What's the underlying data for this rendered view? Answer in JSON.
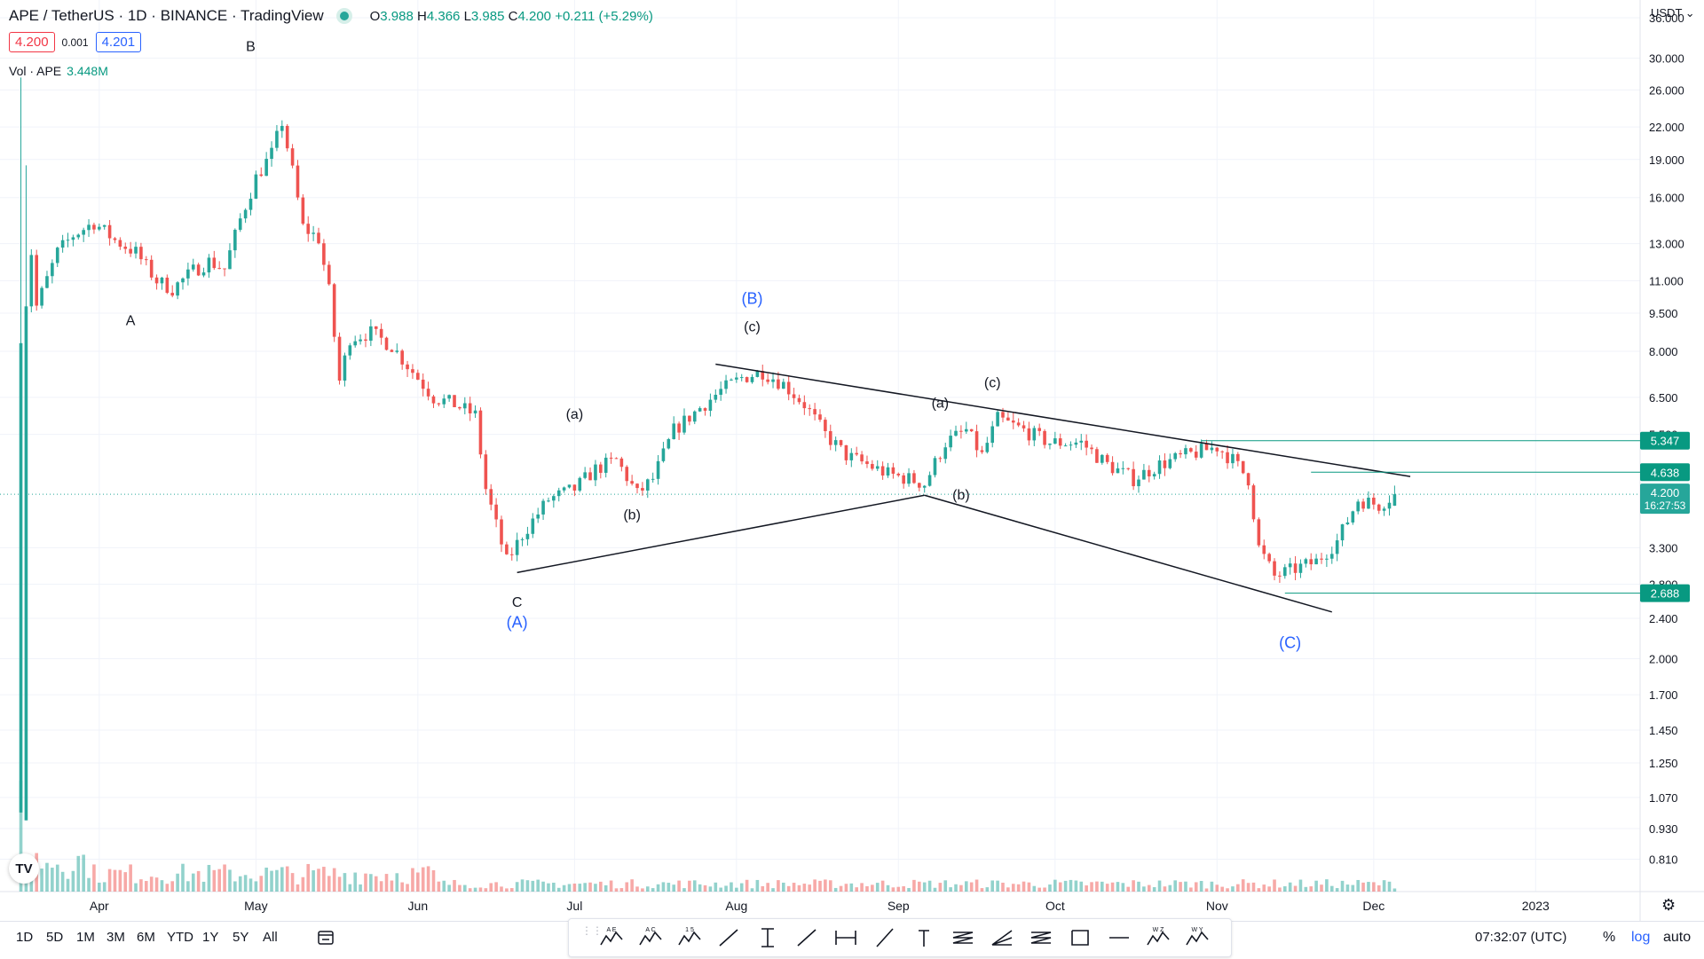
{
  "header": {
    "symbol": "APE / TetherUS · 1D · BINANCE · TradingView",
    "o_label": "O",
    "o": "3.988",
    "h_label": "H",
    "h": "4.366",
    "l_label": "L",
    "l": "3.985",
    "c_label": "C",
    "c": "4.200",
    "change": "+0.211 (+5.29%)",
    "bid": "4.200",
    "spread": "0.001",
    "ask": "4.201",
    "vol_label": "Vol · APE",
    "vol_value": "3.448M"
  },
  "currency": "USDT",
  "colors": {
    "up": "#26a69a",
    "down": "#ef5350",
    "blue_label": "#2962ff",
    "accent": "#089981"
  },
  "chart_data": {
    "type": "candlestick",
    "scale": "log",
    "ylim": [
      0.7,
      39
    ],
    "x_range": [
      "2022-03-13",
      "2023-01-21"
    ],
    "y_ticks": [
      "36.000",
      "30.000",
      "26.000",
      "22.000",
      "19.000",
      "16.000",
      "13.000",
      "11.000",
      "9.500",
      "8.000",
      "6.500",
      "5.500",
      "3.300",
      "2.800",
      "2.400",
      "2.000",
      "1.700",
      "1.450",
      "1.250",
      "1.070",
      "0.930",
      "0.810"
    ],
    "x_tick_labels": [
      {
        "date": "2022-04-01",
        "label": "Apr"
      },
      {
        "date": "2022-05-01",
        "label": "May"
      },
      {
        "date": "2022-06-01",
        "label": "Jun"
      },
      {
        "date": "2022-07-01",
        "label": "Jul"
      },
      {
        "date": "2022-08-01",
        "label": "Aug"
      },
      {
        "date": "2022-09-01",
        "label": "Sep"
      },
      {
        "date": "2022-10-01",
        "label": "Oct"
      },
      {
        "date": "2022-11-01",
        "label": "Nov"
      },
      {
        "date": "2022-12-01",
        "label": "Dec"
      },
      {
        "date": "2023-01-01",
        "label": "2023"
      }
    ],
    "start_date": "2022-03-17",
    "price_path": [
      [
        "2022-03-17",
        1.0
      ],
      [
        "2022-03-18",
        10.0
      ],
      [
        "2022-03-19",
        12.5
      ],
      [
        "2022-03-20",
        9.8
      ],
      [
        "2022-03-24",
        12.5
      ],
      [
        "2022-03-27",
        13.5
      ],
      [
        "2022-03-31",
        14.3
      ],
      [
        "2022-04-04",
        13.2
      ],
      [
        "2022-04-08",
        12.5
      ],
      [
        "2022-04-12",
        11.0
      ],
      [
        "2022-04-15",
        10.6
      ],
      [
        "2022-04-19",
        11.5
      ],
      [
        "2022-04-22",
        12.0
      ],
      [
        "2022-04-25",
        11.6
      ],
      [
        "2022-04-28",
        14.5
      ],
      [
        "2022-05-01",
        17.5
      ],
      [
        "2022-05-04",
        19.5
      ],
      [
        "2022-05-06",
        22.5
      ],
      [
        "2022-05-08",
        18.0
      ],
      [
        "2022-05-10",
        14.0
      ],
      [
        "2022-05-13",
        13.3
      ],
      [
        "2022-05-15",
        10.5
      ],
      [
        "2022-05-17",
        7.0
      ],
      [
        "2022-05-19",
        8.5
      ],
      [
        "2022-05-23",
        8.7
      ],
      [
        "2022-05-27",
        8.2
      ],
      [
        "2022-05-31",
        7.3
      ],
      [
        "2022-06-04",
        6.5
      ],
      [
        "2022-06-08",
        6.3
      ],
      [
        "2022-06-12",
        6.0
      ],
      [
        "2022-06-14",
        4.3
      ],
      [
        "2022-06-18",
        3.1
      ],
      [
        "2022-06-21",
        3.5
      ],
      [
        "2022-06-26",
        4.1
      ],
      [
        "2022-07-01",
        4.3
      ],
      [
        "2022-07-05",
        4.7
      ],
      [
        "2022-07-09",
        4.9
      ],
      [
        "2022-07-13",
        4.2
      ],
      [
        "2022-07-16",
        4.5
      ],
      [
        "2022-07-20",
        5.6
      ],
      [
        "2022-07-25",
        6.2
      ],
      [
        "2022-07-29",
        6.7
      ],
      [
        "2022-08-02",
        7.1
      ],
      [
        "2022-08-06",
        7.3
      ],
      [
        "2022-08-10",
        6.9
      ],
      [
        "2022-08-14",
        6.3
      ],
      [
        "2022-08-18",
        5.5
      ],
      [
        "2022-08-22",
        5.0
      ],
      [
        "2022-08-26",
        4.8
      ],
      [
        "2022-08-30",
        4.6
      ],
      [
        "2022-09-03",
        4.5
      ],
      [
        "2022-09-06",
        4.4
      ],
      [
        "2022-09-10",
        5.3
      ],
      [
        "2022-09-14",
        5.6
      ],
      [
        "2022-09-17",
        5.0
      ],
      [
        "2022-09-20",
        5.9
      ],
      [
        "2022-09-25",
        5.6
      ],
      [
        "2022-09-30",
        5.3
      ],
      [
        "2022-10-06",
        5.3
      ],
      [
        "2022-10-11",
        4.8
      ],
      [
        "2022-10-16",
        4.5
      ],
      [
        "2022-10-21",
        4.8
      ],
      [
        "2022-10-26",
        5.0
      ],
      [
        "2022-11-01",
        5.2
      ],
      [
        "2022-11-04",
        4.9
      ],
      [
        "2022-11-07",
        4.5
      ],
      [
        "2022-11-09",
        3.3
      ],
      [
        "2022-11-12",
        2.9
      ],
      [
        "2022-11-16",
        3.0
      ],
      [
        "2022-11-20",
        3.1
      ],
      [
        "2022-11-24",
        3.4
      ],
      [
        "2022-11-28",
        4.1
      ],
      [
        "2022-12-02",
        4.0
      ],
      [
        "2022-12-05",
        4.2
      ]
    ],
    "current_price": "4.200",
    "countdown": "16:27:53",
    "price_levels": [
      {
        "value": 5.347,
        "label": "5.347",
        "from": "2022-10-29"
      },
      {
        "value": 4.638,
        "label": "4.638",
        "from": "2022-11-19"
      },
      {
        "value": 2.688,
        "label": "2.688",
        "from": "2022-11-14"
      }
    ],
    "trend_lines": [
      [
        [
          "2022-06-20",
          2.95
        ],
        [
          "2022-09-06",
          4.18
        ]
      ],
      [
        [
          "2022-07-28",
          7.55
        ],
        [
          "2022-12-08",
          4.55
        ]
      ],
      [
        [
          "2022-09-06",
          4.18
        ],
        [
          "2022-11-23",
          2.47
        ]
      ]
    ],
    "wave_labels": [
      {
        "text": "A",
        "date": "2022-04-07",
        "price": 9.0,
        "color": "dark"
      },
      {
        "text": "B",
        "date": "2022-04-30",
        "price": 31.0,
        "color": "dark"
      },
      {
        "text": "C",
        "date": "2022-06-20",
        "price": 2.53,
        "color": "dark"
      },
      {
        "text": "(A)",
        "date": "2022-06-20",
        "price": 2.3,
        "color": "blue"
      },
      {
        "text": "(a)",
        "date": "2022-07-01",
        "price": 5.9,
        "color": "dark"
      },
      {
        "text": "(b)",
        "date": "2022-07-12",
        "price": 3.75,
        "color": "dark"
      },
      {
        "text": "(B)",
        "date": "2022-08-04",
        "price": 9.9,
        "color": "blue"
      },
      {
        "text": "(c)",
        "date": "2022-08-04",
        "price": 8.75,
        "color": "dark"
      },
      {
        "text": "(a)",
        "date": "2022-09-09",
        "price": 6.2,
        "color": "dark"
      },
      {
        "text": "(b)",
        "date": "2022-09-13",
        "price": 4.1,
        "color": "dark"
      },
      {
        "text": "(c)",
        "date": "2022-09-19",
        "price": 6.8,
        "color": "dark"
      },
      {
        "text": "(C)",
        "date": "2022-11-15",
        "price": 2.1,
        "color": "blue"
      }
    ]
  },
  "range_buttons": [
    "1D",
    "5D",
    "1M",
    "3M",
    "6M",
    "YTD",
    "1Y",
    "5Y",
    "All"
  ],
  "tools": [
    "pattern-ae",
    "pattern-ac",
    "pattern-15",
    "trend-line",
    "vertical-range",
    "ray",
    "date-range",
    "brush",
    "text",
    "parallel-lines",
    "fib-lines",
    "fib-fan",
    "rectangle",
    "horizontal-line",
    "pattern-wz",
    "pattern-wy"
  ],
  "tool_labels": [
    "A E",
    "A C",
    "1 5",
    "",
    "",
    "",
    "",
    "",
    "",
    "",
    "",
    "",
    "",
    "",
    "W Z",
    "W Y"
  ],
  "clock": "07:32:07 (UTC)",
  "scale_buttons": {
    "pct": "%",
    "log": "log",
    "auto": "auto"
  },
  "logo": "TV"
}
